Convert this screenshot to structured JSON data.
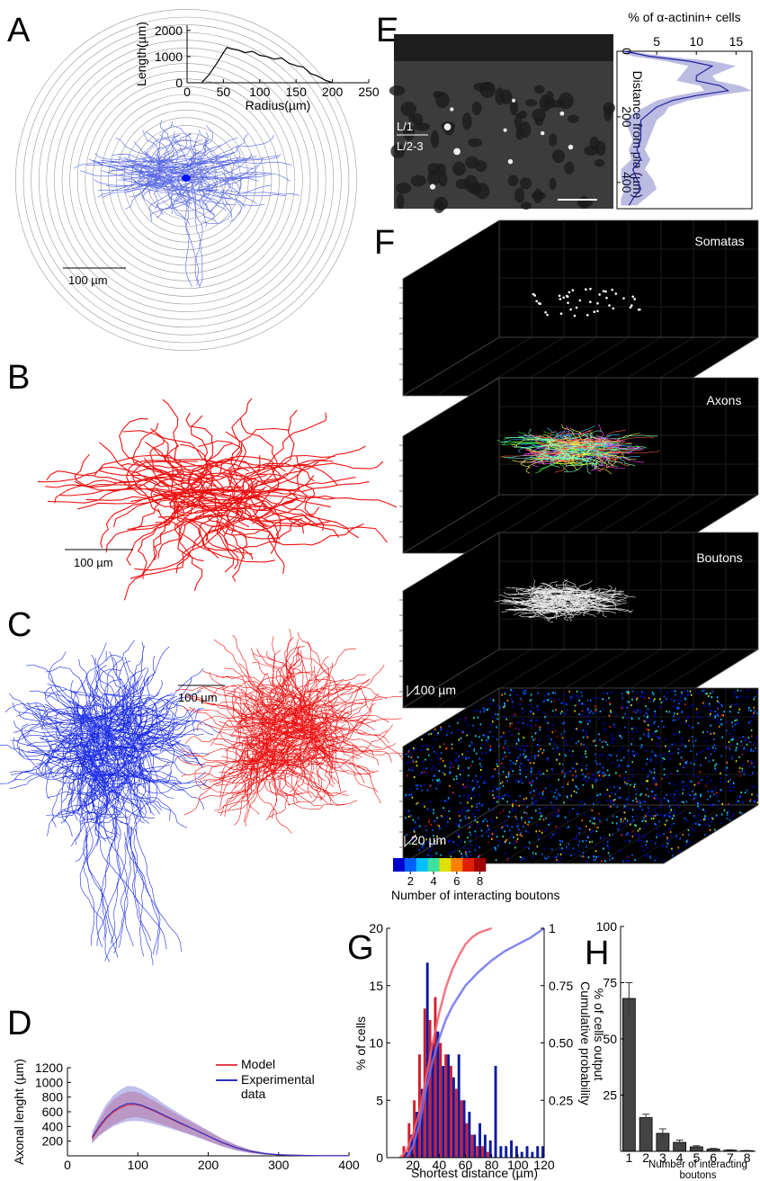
{
  "figure": {
    "panel_labels": [
      "A",
      "B",
      "C",
      "D",
      "E",
      "F",
      "G",
      "H"
    ],
    "panel_a": {
      "scale_bar": "100 µm"
    },
    "panel_b": {
      "scale_bar": "100 µm"
    },
    "panel_c": {
      "scale_bar": "100 µm"
    },
    "panel_e": {
      "layer_labels": [
        "L/1",
        "L/2-3"
      ]
    },
    "panel_f": {
      "stack_labels": [
        "Somatas",
        "Axons",
        "Boutons"
      ],
      "scale_bars": [
        "100 µm",
        "20 µm"
      ],
      "colorbar": {
        "colors": [
          "#0000c8",
          "#0060ff",
          "#00c0ff",
          "#40e0a0",
          "#e0e000",
          "#ff8000",
          "#e02000",
          "#a00000"
        ],
        "ticks": [
          2,
          4,
          6,
          8
        ],
        "label": "Number of interacting boutons"
      }
    }
  },
  "chart_data": [
    {
      "type": "line",
      "xlabel": "Radius(µm)",
      "ylabel": "Length(µm)",
      "color": "#000000",
      "x": [
        20,
        30,
        40,
        50,
        55,
        60,
        70,
        80,
        90,
        100,
        110,
        120,
        130,
        140,
        150,
        160,
        170,
        180,
        190,
        200
      ],
      "values": [
        0,
        300,
        700,
        1150,
        1350,
        1300,
        1250,
        1150,
        1200,
        1050,
        1000,
        900,
        950,
        750,
        650,
        600,
        350,
        250,
        100,
        0
      ],
      "xlim": [
        0,
        250
      ],
      "ylim": [
        0,
        2200
      ],
      "xticks": [
        0,
        50,
        100,
        150,
        200,
        250
      ],
      "yticks": [
        0,
        1000,
        2000
      ]
    },
    {
      "type": "line",
      "ylabel": "Axonal lenght (µm)",
      "xlim": [
        0,
        400
      ],
      "ylim": [
        0,
        1200
      ],
      "xticks": [
        0,
        100,
        200,
        300,
        400
      ],
      "yticks": [
        200,
        400,
        600,
        800,
        1000,
        1200
      ],
      "x": [
        35,
        45,
        55,
        65,
        75,
        85,
        95,
        105,
        115,
        125,
        140,
        160,
        180,
        200,
        220,
        240,
        260,
        280,
        300,
        330,
        360,
        400
      ],
      "series": [
        {
          "name": "Model",
          "color": "#e8404a",
          "values": [
            230,
            380,
            500,
            590,
            650,
            690,
            700,
            680,
            640,
            600,
            530,
            440,
            360,
            270,
            180,
            110,
            60,
            30,
            15,
            6,
            3,
            1
          ],
          "errors": [
            60,
            100,
            150,
            170,
            180,
            180,
            175,
            165,
            150,
            140,
            120,
            100,
            80,
            65,
            50,
            35,
            20,
            12,
            6,
            3,
            2,
            1
          ]
        },
        {
          "name": "Experimental data",
          "color": "#3030c0",
          "values": [
            250,
            400,
            520,
            610,
            670,
            710,
            710,
            690,
            650,
            610,
            540,
            450,
            360,
            270,
            180,
            110,
            60,
            30,
            15,
            6,
            3,
            1
          ],
          "errors": [
            80,
            130,
            180,
            210,
            230,
            240,
            235,
            220,
            200,
            180,
            150,
            120,
            95,
            75,
            55,
            40,
            25,
            15,
            8,
            4,
            2,
            1
          ]
        }
      ]
    },
    {
      "type": "line",
      "orientation": "vertical",
      "xlabel": "% of α-actinin+ cells",
      "ylabel": "Distance from pia (µm)",
      "color": "#2020a0",
      "xlim": [
        0,
        17
      ],
      "ylim": [
        0,
        480
      ],
      "xticks": [
        5,
        10,
        15
      ],
      "yticks": [
        0,
        200,
        400
      ],
      "y": [
        0,
        15,
        30,
        45,
        60,
        75,
        90,
        105,
        120,
        135,
        150,
        170,
        190,
        210,
        240,
        270,
        300,
        330,
        360,
        390,
        420,
        450,
        470
      ],
      "values": [
        1,
        4,
        9,
        12,
        11,
        10,
        10,
        13,
        14,
        10,
        7,
        5,
        4,
        3,
        3,
        3,
        2.5,
        3,
        2,
        2.5,
        3,
        2,
        1.5
      ],
      "errors": [
        0.5,
        2,
        3,
        3,
        2.5,
        2,
        2.5,
        2.5,
        3,
        2.5,
        2,
        1.5,
        2,
        2,
        1.5,
        1,
        1,
        1.2,
        1.5,
        2,
        2,
        1.5,
        1
      ]
    },
    {
      "type": "histogram",
      "xlabel": "Shortest distance (µm)",
      "ylabel": "% of cells",
      "y2label": "Cumulative probability",
      "xlim": [
        0,
        120
      ],
      "ylim": [
        0,
        20
      ],
      "y2lim": [
        0,
        1
      ],
      "xticks": [
        20,
        40,
        60,
        80,
        100,
        120
      ],
      "yticks": [
        0,
        5,
        10,
        15,
        20
      ],
      "y2ticks": [
        0.25,
        {
          "value": 0.5,
          "label": "0.50"
        },
        0.75,
        1
      ],
      "bins": [
        0,
        4,
        8,
        12,
        16,
        20,
        24,
        28,
        32,
        36,
        40,
        44,
        48,
        52,
        56,
        60,
        64,
        68,
        72,
        76,
        80,
        84,
        88,
        92,
        96,
        100,
        104,
        108,
        112,
        116,
        120
      ],
      "series": [
        {
          "color": "#d02030",
          "values": [
            0,
            0,
            0,
            1,
            3,
            5,
            9,
            13,
            12,
            14,
            10,
            9,
            8,
            6,
            5,
            3,
            2,
            1,
            1,
            0.5,
            0,
            0,
            0,
            0,
            0,
            0,
            0,
            0,
            0,
            0
          ]
        },
        {
          "color": "#0a1aa0",
          "values": [
            0,
            0,
            0,
            0.5,
            2,
            4,
            6,
            17,
            10,
            11,
            8,
            9,
            7,
            9,
            5,
            4,
            2,
            3,
            2,
            1.5,
            8,
            1,
            1,
            1.5,
            1,
            0.5,
            1,
            0.5,
            1,
            1
          ]
        }
      ],
      "lines": [
        {
          "color": "#f06070",
          "axis": "y2",
          "x": [
            10,
            15,
            20,
            25,
            30,
            35,
            40,
            45,
            50,
            55,
            60,
            65,
            70,
            75,
            80
          ],
          "values": [
            0,
            0.03,
            0.1,
            0.2,
            0.35,
            0.5,
            0.63,
            0.74,
            0.82,
            0.88,
            0.93,
            0.96,
            0.98,
            0.99,
            1
          ]
        },
        {
          "color": "#7070f0",
          "axis": "y2",
          "x": [
            15,
            20,
            25,
            30,
            35,
            40,
            45,
            50,
            60,
            70,
            80,
            90,
            100,
            110,
            120
          ],
          "values": [
            0,
            0.05,
            0.15,
            0.3,
            0.42,
            0.52,
            0.6,
            0.66,
            0.75,
            0.81,
            0.86,
            0.9,
            0.93,
            0.96,
            1
          ]
        }
      ]
    },
    {
      "type": "bar",
      "xlabel": "Number of interacting boutons",
      "ylabel": "% of cells output",
      "color": "#444444",
      "categories": [
        "1",
        "2",
        "3",
        "4",
        "5",
        "6",
        "7",
        "8"
      ],
      "values": [
        68,
        15,
        8,
        4,
        2,
        1,
        0.5,
        0.3
      ],
      "errors": [
        7,
        1.5,
        2,
        1,
        0.5,
        0.3,
        0.2,
        0.1
      ],
      "ylim": [
        0,
        100
      ],
      "yticks": [
        25,
        50,
        75,
        100
      ]
    }
  ]
}
